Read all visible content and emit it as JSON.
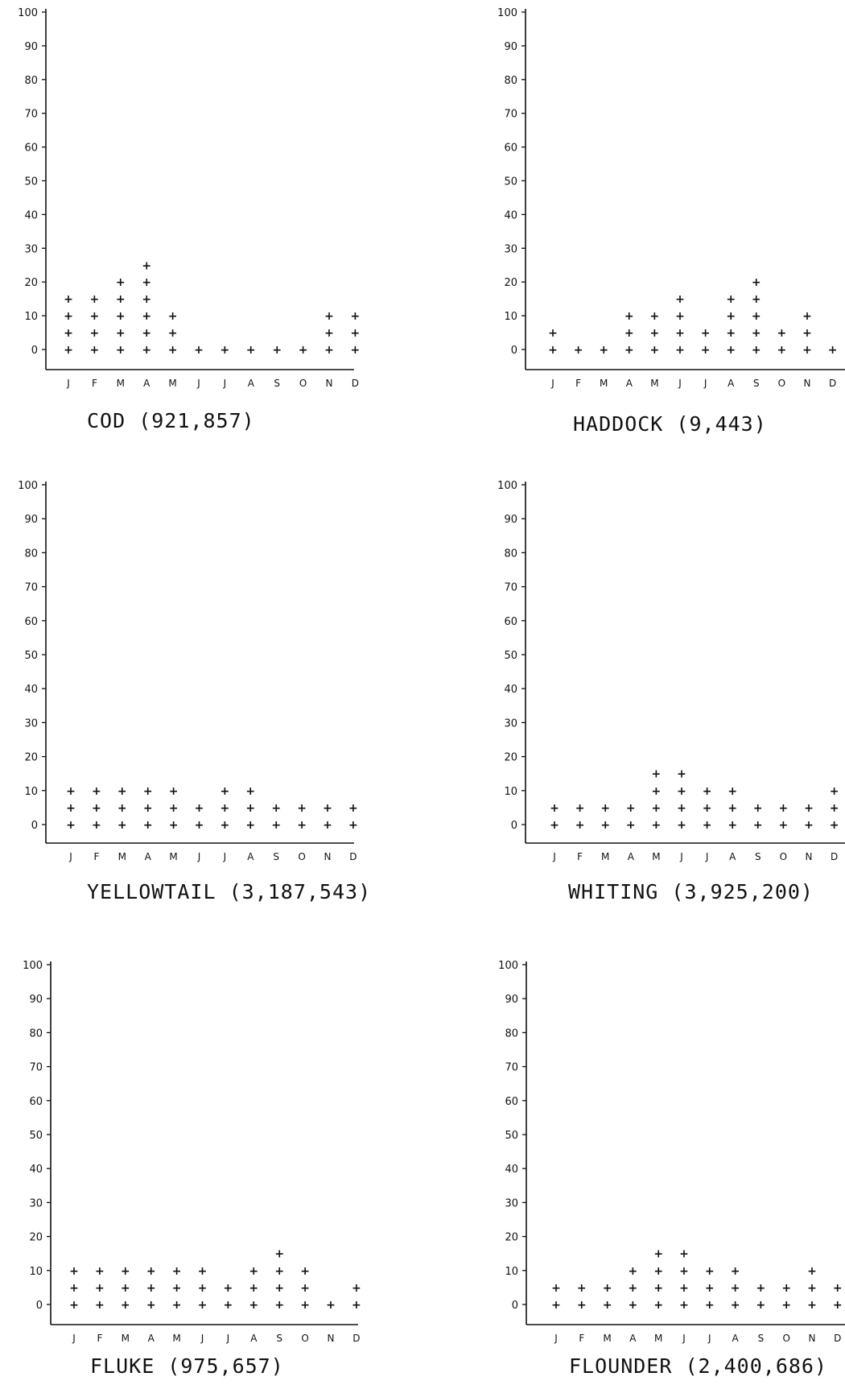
{
  "chart_data": [
    {
      "type": "scatter",
      "title": "COD (921,857)",
      "categories": [
        "J",
        "F",
        "M",
        "A",
        "M",
        "J",
        "J",
        "A",
        "S",
        "O",
        "N",
        "D"
      ],
      "ylim": [
        0,
        100
      ],
      "yticks": [
        0,
        10,
        20,
        30,
        40,
        50,
        60,
        70,
        80,
        90,
        100
      ],
      "values": [
        15,
        15,
        20,
        25,
        10,
        0,
        0,
        0,
        0,
        0,
        10,
        10
      ],
      "marker": "+",
      "marker_step": 5,
      "grid": false
    },
    {
      "type": "scatter",
      "title": "HADDOCK (9,443)",
      "categories": [
        "J",
        "F",
        "M",
        "A",
        "M",
        "J",
        "J",
        "A",
        "S",
        "O",
        "N",
        "D"
      ],
      "ylim": [
        0,
        100
      ],
      "yticks": [
        0,
        10,
        20,
        30,
        40,
        50,
        60,
        70,
        80,
        90,
        100
      ],
      "values": [
        5,
        0,
        0,
        10,
        10,
        15,
        5,
        15,
        20,
        5,
        10,
        0
      ],
      "marker": "+",
      "marker_step": 5,
      "grid": false
    },
    {
      "type": "scatter",
      "title": "YELLOWTAIL (3,187,543)",
      "categories": [
        "J",
        "F",
        "M",
        "A",
        "M",
        "J",
        "J",
        "A",
        "S",
        "O",
        "N",
        "D"
      ],
      "ylim": [
        0,
        100
      ],
      "yticks": [
        0,
        10,
        20,
        30,
        40,
        50,
        60,
        70,
        80,
        90,
        100
      ],
      "values": [
        10,
        10,
        10,
        10,
        10,
        5,
        10,
        10,
        5,
        5,
        5,
        5
      ],
      "marker": "+",
      "marker_step": 5,
      "grid": false
    },
    {
      "type": "scatter",
      "title": "WHITING (3,925,200)",
      "categories": [
        "J",
        "F",
        "M",
        "A",
        "M",
        "J",
        "J",
        "A",
        "S",
        "O",
        "N",
        "D"
      ],
      "ylim": [
        0,
        100
      ],
      "yticks": [
        0,
        10,
        20,
        30,
        40,
        50,
        60,
        70,
        80,
        90,
        100
      ],
      "values": [
        5,
        5,
        5,
        5,
        15,
        15,
        10,
        10,
        5,
        5,
        5,
        10
      ],
      "marker": "+",
      "marker_step": 5,
      "grid": false
    },
    {
      "type": "scatter",
      "title": "FLUKE (975,657)",
      "categories": [
        "J",
        "F",
        "M",
        "A",
        "M",
        "J",
        "J",
        "A",
        "S",
        "O",
        "N",
        "D"
      ],
      "ylim": [
        0,
        100
      ],
      "yticks": [
        0,
        10,
        20,
        30,
        40,
        50,
        60,
        70,
        80,
        90,
        100
      ],
      "values": [
        10,
        10,
        10,
        10,
        10,
        10,
        5,
        10,
        15,
        10,
        0,
        5
      ],
      "marker": "+",
      "marker_step": 5,
      "grid": false
    },
    {
      "type": "scatter",
      "title": "FLOUNDER (2,400,686)",
      "categories": [
        "J",
        "F",
        "M",
        "A",
        "M",
        "J",
        "J",
        "A",
        "S",
        "O",
        "N",
        "D"
      ],
      "ylim": [
        0,
        100
      ],
      "yticks": [
        0,
        10,
        20,
        30,
        40,
        50,
        60,
        70,
        80,
        90,
        100
      ],
      "values": [
        5,
        5,
        5,
        10,
        15,
        15,
        10,
        10,
        5,
        5,
        10,
        5
      ],
      "marker": "+",
      "marker_step": 5,
      "grid": false
    }
  ]
}
